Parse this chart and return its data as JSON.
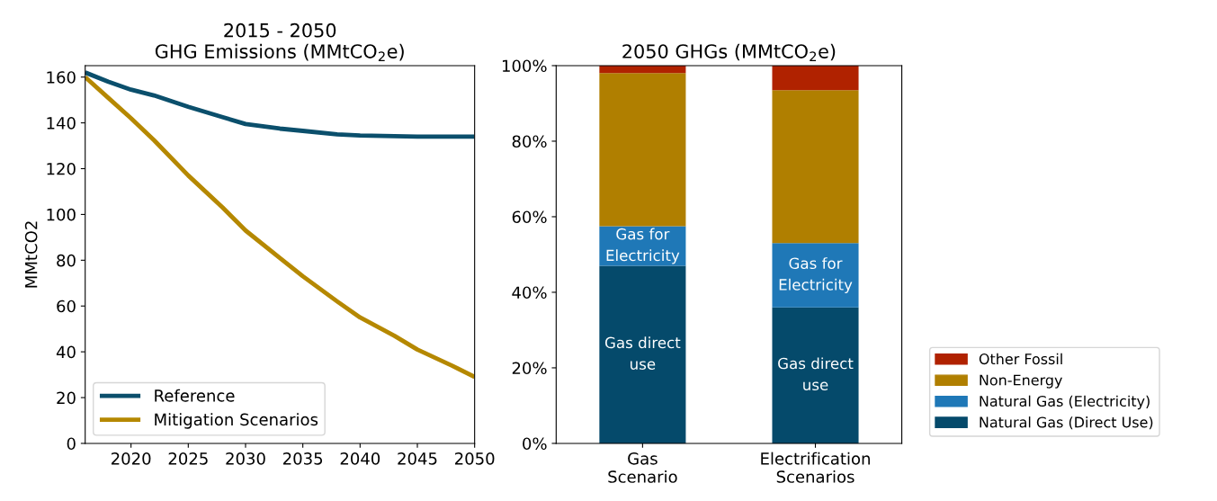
{
  "chart_data": [
    {
      "type": "line",
      "title": "2015 - 2050\nGHG Emissions (MMtCO$_{2}$e)",
      "ylabel": "MMtCO2",
      "xlim": [
        2016,
        2050
      ],
      "xticks": [
        2020,
        2025,
        2030,
        2035,
        2040,
        2045,
        2050
      ],
      "ylim": [
        0,
        165
      ],
      "yticks": [
        0,
        20,
        40,
        60,
        80,
        100,
        120,
        140,
        160
      ],
      "grid": false,
      "legend": "bottom left",
      "series": [
        {
          "name": "Reference",
          "color": "#0b4f6c",
          "x": [
            2016,
            2018,
            2020,
            2022,
            2025,
            2028,
            2030,
            2033,
            2035,
            2038,
            2040,
            2045,
            2050
          ],
          "values": [
            162,
            158,
            154.5,
            152,
            147,
            142.5,
            139.5,
            137.5,
            136.5,
            135,
            134.5,
            134,
            134
          ]
        },
        {
          "name": "Mitigation Scenarios",
          "color": "#b58800",
          "x": [
            2016,
            2018,
            2020,
            2022,
            2025,
            2028,
            2030,
            2033,
            2035,
            2038,
            2040,
            2043,
            2045,
            2048,
            2050
          ],
          "values": [
            160,
            151,
            142,
            132.5,
            117,
            103,
            93,
            81,
            73,
            62,
            55,
            47,
            41,
            34,
            29
          ]
        }
      ]
    },
    {
      "type": "bar",
      "stacked": true,
      "title": "2050 GHGs (MMtCO$_{2}$e)",
      "categories": [
        "Gas\nScenario",
        "Electrification\nScenarios"
      ],
      "ylim": [
        0,
        100
      ],
      "yticks": [
        {
          "value": 0,
          "label": "0%"
        },
        {
          "value": 20,
          "label": "20%"
        },
        {
          "value": 40,
          "label": "40%"
        },
        {
          "value": 60,
          "label": "60%"
        },
        {
          "value": 80,
          "label": "80%"
        },
        {
          "value": 100,
          "label": "100%"
        }
      ],
      "grid": false,
      "legend": "right",
      "series": [
        {
          "name": "Natural Gas (Direct Use)",
          "color": "#054a6b",
          "values": [
            47,
            36
          ],
          "value_labels": [
            "Gas direct\nuse",
            "Gas direct\nuse"
          ]
        },
        {
          "name": "Natural Gas (Electricity)",
          "color": "#1f78b7",
          "values": [
            10.5,
            17
          ],
          "value_labels": [
            "Gas for\nElectricity",
            "Gas for\nElectricity"
          ]
        },
        {
          "name": "Non-Energy",
          "color": "#b07f00",
          "values": [
            40.5,
            40.5
          ]
        },
        {
          "name": "Other Fossil",
          "color": "#b02200",
          "values": [
            2,
            6.5
          ]
        }
      ]
    }
  ]
}
